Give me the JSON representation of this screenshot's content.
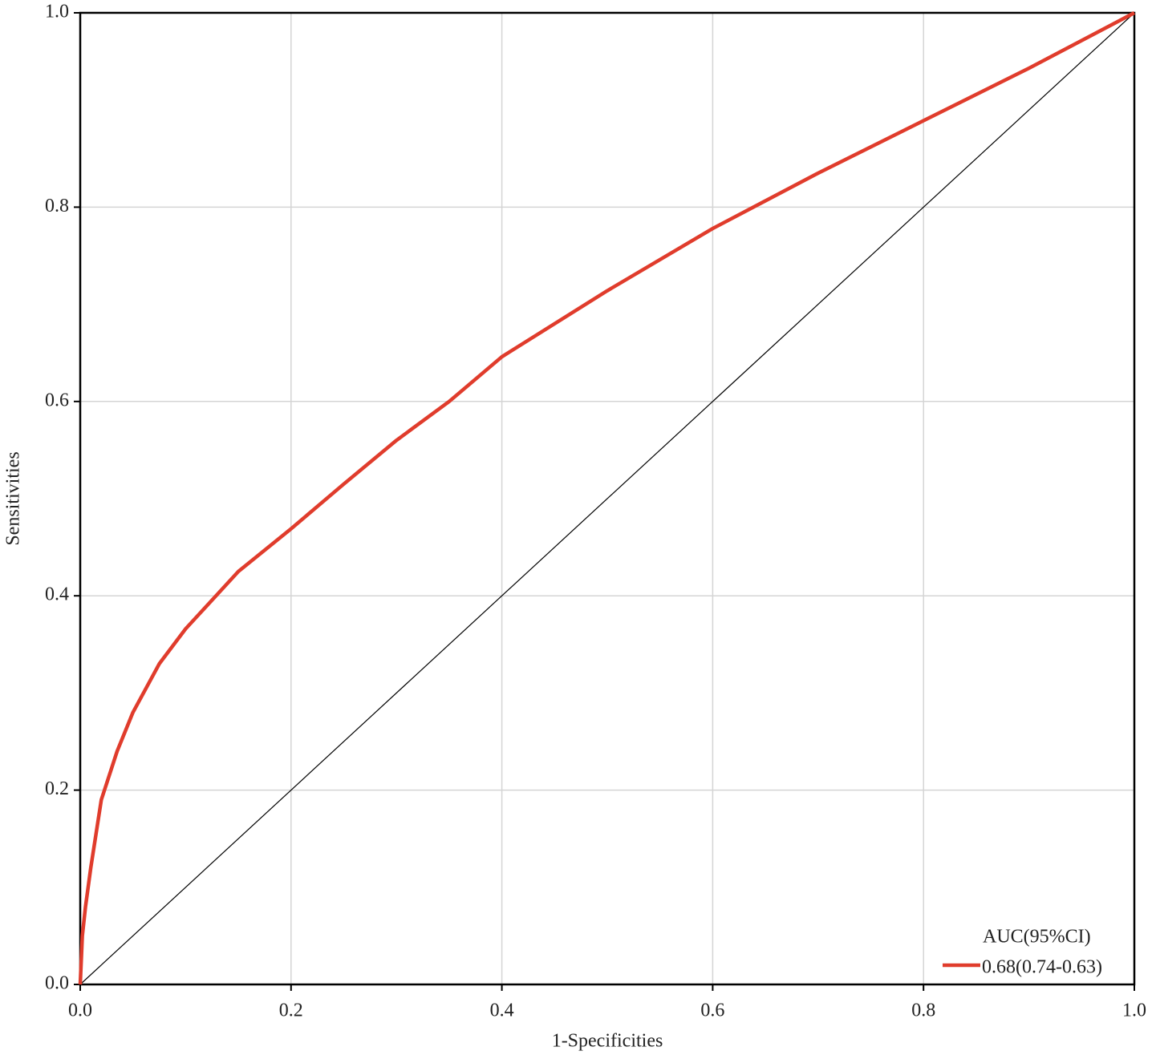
{
  "chart_data": {
    "type": "line",
    "x_label": "1-Specificities",
    "y_label": "Sensitivities",
    "xlim": [
      0,
      1
    ],
    "ylim": [
      0,
      1
    ],
    "xticks": [
      {
        "value": 0,
        "label": "0.0"
      },
      0.2,
      0.4,
      0.6,
      0.8,
      {
        "value": 1,
        "label": "1.0"
      }
    ],
    "yticks": [
      {
        "value": 0,
        "label": "0.0"
      },
      0.2,
      0.4,
      0.6,
      0.8,
      {
        "value": 1,
        "label": "1.0"
      }
    ],
    "grid": true,
    "legend_title": "AUC(95%CI)",
    "legend_position": "lower right",
    "series": [
      {
        "name": "0.68(0.74-0.63)",
        "color": "#e03c2c",
        "x": [
          0,
          0.002,
          0.005,
          0.01,
          0.02,
          0.035,
          0.05,
          0.075,
          0.1,
          0.15,
          0.2,
          0.25,
          0.3,
          0.35,
          0.4,
          0.5,
          0.6,
          0.7,
          0.8,
          0.9,
          1
        ],
        "values": [
          0,
          0.05,
          0.08,
          0.12,
          0.19,
          0.24,
          0.28,
          0.33,
          0.366,
          0.425,
          0.469,
          0.515,
          0.56,
          0.6,
          0.646,
          0.714,
          0.778,
          0.835,
          0.889,
          0.943,
          1
        ]
      }
    ],
    "reference_line": {
      "color": "#000000",
      "x": [
        0,
        1
      ],
      "values": [
        0,
        1
      ]
    }
  }
}
